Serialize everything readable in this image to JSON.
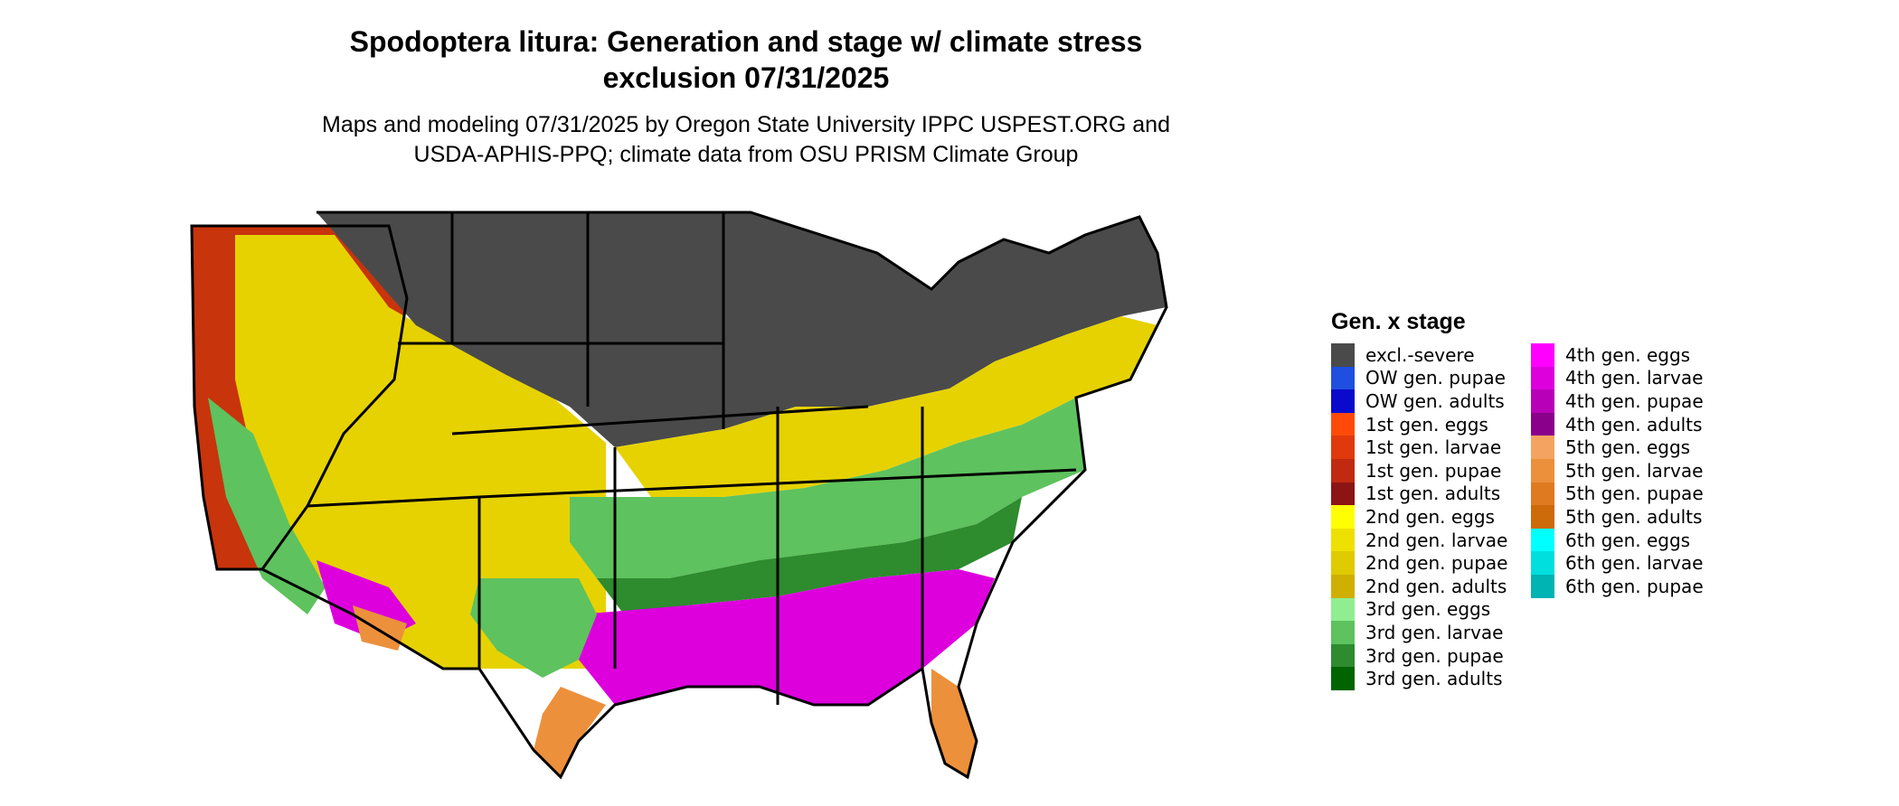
{
  "title_line1": "Spodoptera litura: Generation and stage w/ climate stress",
  "title_line2": "exclusion 07/31/2025",
  "subtitle_line1": "Maps and modeling 07/31/2025 by Oregon State University IPPC USPEST.ORG and",
  "subtitle_line2": "USDA-APHIS-PPQ; climate data from OSU PRISM Climate Group",
  "legend": {
    "title": "Gen. x stage",
    "items": [
      {
        "label": "excl.-severe",
        "color": "#4a4a4a"
      },
      {
        "label": "OW gen. pupae",
        "color": "#1f4fe0"
      },
      {
        "label": "OW gen. adults",
        "color": "#0a0acc"
      },
      {
        "label": "1st gen. eggs",
        "color": "#ff4a0a"
      },
      {
        "label": "1st gen. larvae",
        "color": "#e03a0c"
      },
      {
        "label": "1st gen. pupae",
        "color": "#c02a10"
      },
      {
        "label": "1st gen. adults",
        "color": "#8c1414"
      },
      {
        "label": "2nd gen. eggs",
        "color": "#ffff00"
      },
      {
        "label": "2nd gen. larvae",
        "color": "#eee000"
      },
      {
        "label": "2nd gen. pupae",
        "color": "#dfcb00"
      },
      {
        "label": "2nd gen. adults",
        "color": "#cfb000"
      },
      {
        "label": "3rd gen. eggs",
        "color": "#90ee90"
      },
      {
        "label": "3rd gen. larvae",
        "color": "#5ec25e"
      },
      {
        "label": "3rd gen. pupae",
        "color": "#2e8b2e"
      },
      {
        "label": "3rd gen. adults",
        "color": "#006400"
      },
      {
        "label": "4th gen. eggs",
        "color": "#ff00ff"
      },
      {
        "label": "4th gen. larvae",
        "color": "#dd00dd"
      },
      {
        "label": "4th gen. pupae",
        "color": "#b800b8"
      },
      {
        "label": "4th gen. adults",
        "color": "#8b008b"
      },
      {
        "label": "5th gen. eggs",
        "color": "#f4a460"
      },
      {
        "label": "5th gen. larvae",
        "color": "#ec903c"
      },
      {
        "label": "5th gen. pupae",
        "color": "#e07a20"
      },
      {
        "label": "5th gen. adults",
        "color": "#cd6a0a"
      },
      {
        "label": "6th gen. eggs",
        "color": "#00ffff"
      },
      {
        "label": "6th gen. larvae",
        "color": "#00dede"
      },
      {
        "label": "6th gen. pupae",
        "color": "#00b4b4"
      }
    ]
  }
}
